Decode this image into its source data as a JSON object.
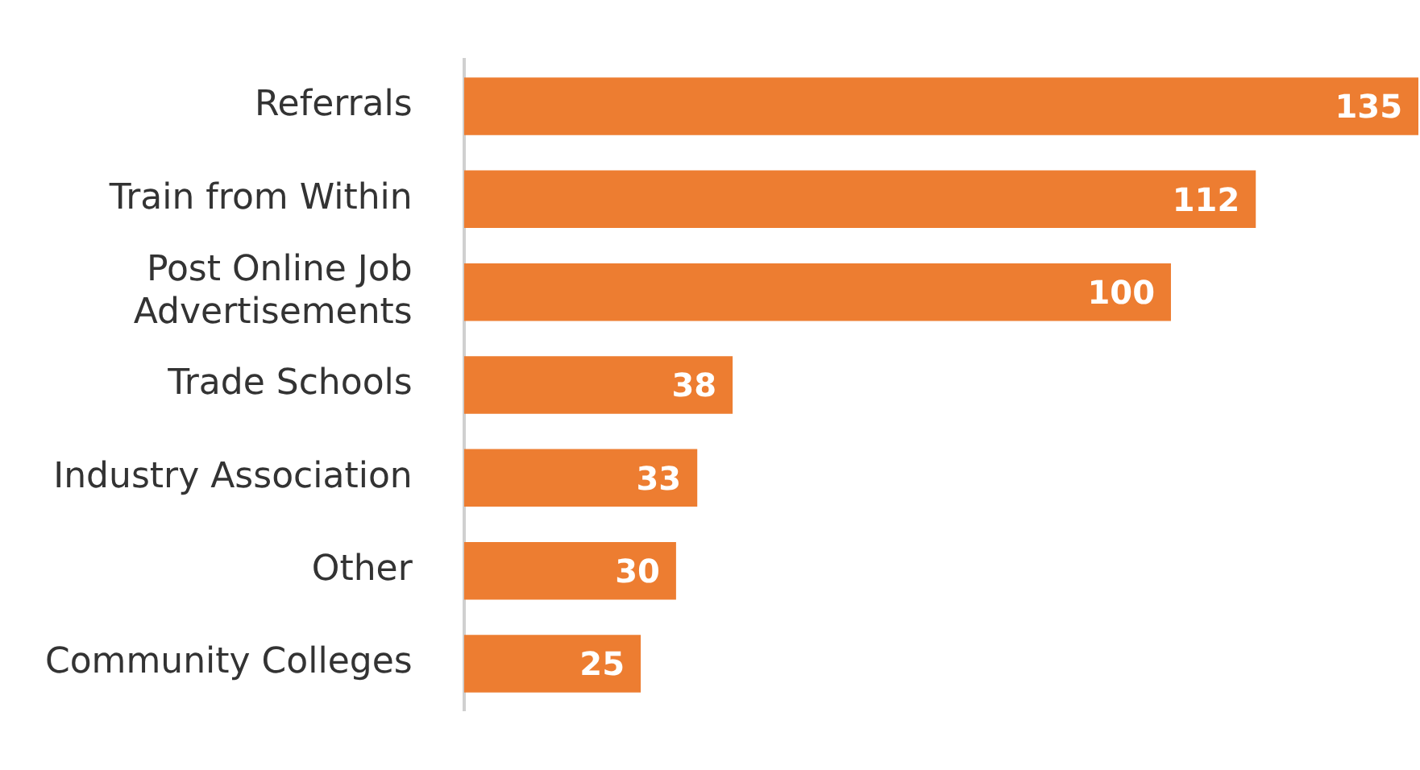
{
  "chart_data": {
    "type": "bar",
    "orientation": "horizontal",
    "categories": [
      "Referrals",
      "Train from Within",
      "Post Online Job Advertisements",
      "Trade Schools",
      "Industry Association",
      "Other",
      "Community Colleges"
    ],
    "values": [
      135,
      112,
      100,
      38,
      33,
      30,
      25
    ],
    "color": "#ed7d31",
    "xlim": [
      0,
      135
    ],
    "data_labels": true,
    "legend": false
  }
}
